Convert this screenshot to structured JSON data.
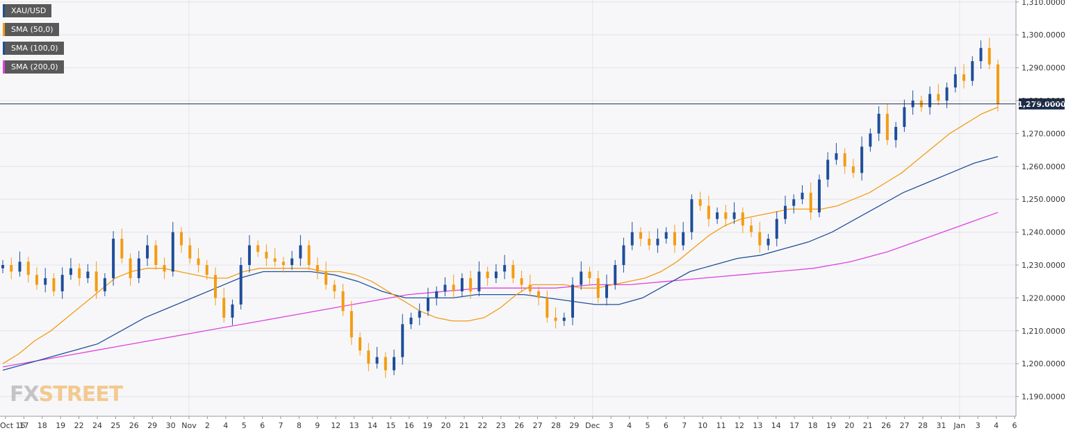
{
  "chart_data": {
    "type": "candlestick",
    "legend": [
      {
        "name": "XAU/USD",
        "color": "#1f4e9a"
      },
      {
        "name": "SMA (50,0)",
        "color": "#f39c12"
      },
      {
        "name": "SMA (100,0)",
        "color": "#1f4e9a"
      },
      {
        "name": "SMA (200,0)",
        "color": "#e040e0"
      }
    ],
    "y_ticks": [
      "1,190.0000",
      "1,200.0000",
      "1,210.0000",
      "1,220.0000",
      "1,230.0000",
      "1,240.0000",
      "1,250.0000",
      "1,260.0000",
      "1,270.0000",
      "1,280.0000",
      "1,290.0000",
      "1,300.0000",
      "1,310.0000"
    ],
    "ylim": [
      1184,
      1310.6
    ],
    "x_ticks": [
      "Oct 16",
      "17",
      "18",
      "19",
      "22",
      "24",
      "25",
      "26",
      "29",
      "30",
      "Nov",
      "2",
      "4",
      "5",
      "6",
      "7",
      "8",
      "9",
      "12",
      "13",
      "14",
      "15",
      "16",
      "19",
      "20",
      "21",
      "22",
      "23",
      "26",
      "27",
      "28",
      "29",
      "Dec",
      "3",
      "4",
      "5",
      "6",
      "7",
      "10",
      "11",
      "12",
      "13",
      "14",
      "17",
      "18",
      "19",
      "20",
      "21",
      "26",
      "27",
      "28",
      "31",
      "Jan",
      "3",
      "4",
      "6"
    ],
    "current_price": 1279.0,
    "current_price_label": "1,279.0000",
    "up_color": "#1f4e9a",
    "down_color": "#f39c12",
    "closes": [
      1230,
      1228,
      1231,
      1227,
      1224,
      1226,
      1222,
      1227,
      1229,
      1226,
      1228,
      1222,
      1226,
      1238,
      1232,
      1226,
      1232,
      1236,
      1230,
      1228,
      1240,
      1236,
      1232,
      1230,
      1227,
      1220,
      1214,
      1218,
      1230,
      1236,
      1234,
      1232,
      1231,
      1230,
      1232,
      1236,
      1230,
      1228,
      1224,
      1222,
      1216,
      1208,
      1204,
      1200,
      1202,
      1198,
      1202,
      1212,
      1214,
      1216,
      1220,
      1222,
      1224,
      1222,
      1226,
      1222,
      1228,
      1226,
      1228,
      1230,
      1226,
      1224,
      1222,
      1220,
      1214,
      1213,
      1214,
      1224,
      1228,
      1226,
      1220,
      1224,
      1230,
      1236,
      1240,
      1238,
      1236,
      1238,
      1240,
      1236,
      1240,
      1250,
      1248,
      1244,
      1246,
      1244,
      1246,
      1242,
      1240,
      1236,
      1238,
      1244,
      1248,
      1250,
      1252,
      1246,
      1256,
      1262,
      1264,
      1260,
      1258,
      1266,
      1270,
      1276,
      1268,
      1272,
      1278,
      1280,
      1278,
      1282,
      1280,
      1284,
      1288,
      1286,
      1292,
      1296,
      1291,
      1279
    ],
    "sma50": [
      1200,
      1203,
      1207,
      1210,
      1214,
      1218,
      1222,
      1226,
      1228,
      1229,
      1229,
      1228,
      1227,
      1226,
      1226,
      1228,
      1229,
      1229,
      1229,
      1229,
      1228,
      1228,
      1227,
      1225,
      1222,
      1219,
      1216,
      1214,
      1213,
      1213,
      1214,
      1217,
      1221,
      1224,
      1224,
      1224,
      1223,
      1223,
      1224,
      1225,
      1226,
      1228,
      1231,
      1235,
      1239,
      1242,
      1244,
      1245,
      1246,
      1247,
      1247,
      1247,
      1248,
      1250,
      1252,
      1255,
      1258,
      1262,
      1266,
      1270,
      1273,
      1276,
      1278
    ],
    "sma100": [
      1198,
      1200,
      1202,
      1204,
      1206,
      1210,
      1214,
      1217,
      1220,
      1223,
      1226,
      1228,
      1228,
      1228,
      1227,
      1225,
      1222,
      1220,
      1220,
      1220,
      1221,
      1221,
      1221,
      1220,
      1219,
      1218,
      1218,
      1220,
      1224,
      1228,
      1230,
      1232,
      1233,
      1235,
      1237,
      1240,
      1244,
      1248,
      1252,
      1255,
      1258,
      1261,
      1263
    ],
    "sma200": [
      1199,
      1201,
      1203,
      1205,
      1207,
      1209,
      1211,
      1213,
      1215,
      1217,
      1219,
      1221,
      1222,
      1223,
      1223,
      1223,
      1224,
      1224,
      1225,
      1226,
      1227,
      1228,
      1229,
      1231,
      1234,
      1238,
      1242,
      1246
    ]
  },
  "branding": {
    "fx": "FX",
    "street": "STREET"
  }
}
